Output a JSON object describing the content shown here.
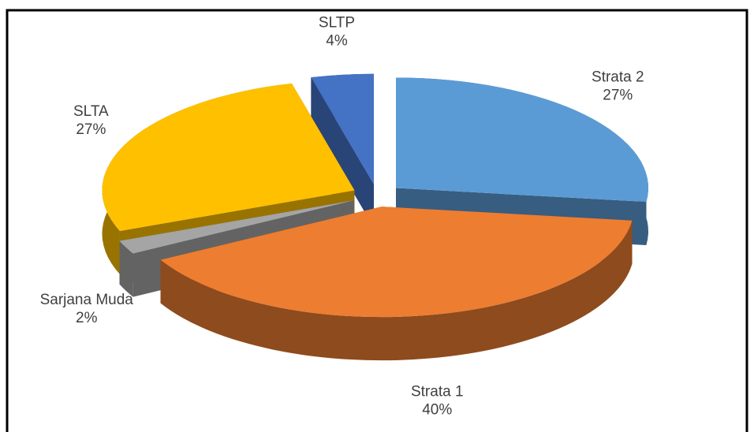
{
  "chart_data": {
    "type": "pie",
    "categories": [
      "Strata 2",
      "Strata 1",
      "Sarjana Muda",
      "SLTA",
      "SLTP"
    ],
    "values": [
      27,
      40,
      2,
      27,
      4
    ],
    "value_labels": [
      "27%",
      "40%",
      "2%",
      "27%",
      "4%"
    ],
    "colors": [
      "#5b9bd5",
      "#ed7d31",
      "#a5a5a5",
      "#ffc000",
      "#4472c4"
    ],
    "exploded": true,
    "three_d": true
  }
}
